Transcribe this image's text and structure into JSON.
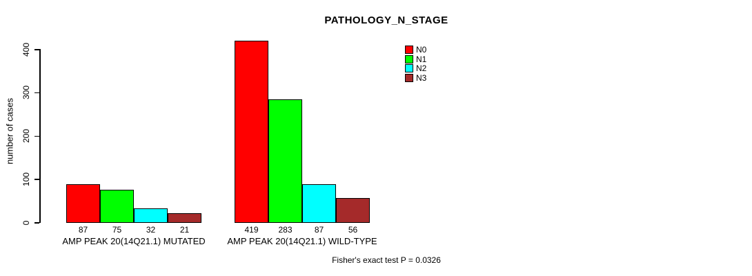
{
  "chart_data": {
    "type": "bar",
    "title": "PATHOLOGY_N_STAGE",
    "ylabel": "number of cases",
    "xlabel": "",
    "ylim": [
      0,
      400
    ],
    "y_ticks": [
      0,
      100,
      200,
      300,
      400
    ],
    "grid": false,
    "legend_position": "top-right",
    "categories": [
      "AMP PEAK 20(14Q21.1) MUTATED",
      "AMP PEAK 20(14Q21.1) WILD-TYPE"
    ],
    "series": [
      {
        "name": "N0",
        "color": "#FF0000",
        "values": [
          87,
          419
        ]
      },
      {
        "name": "N1",
        "color": "#00FF00",
        "values": [
          75,
          283
        ]
      },
      {
        "name": "N2",
        "color": "#00FFFF",
        "values": [
          32,
          87
        ]
      },
      {
        "name": "N3",
        "color": "#A52A2A",
        "values": [
          21,
          56
        ]
      }
    ],
    "bar_value_labels": [
      [
        87,
        75,
        32,
        21
      ],
      [
        419,
        283,
        87,
        56
      ]
    ],
    "annotation": "Fisher's exact test P = 0.0326"
  }
}
